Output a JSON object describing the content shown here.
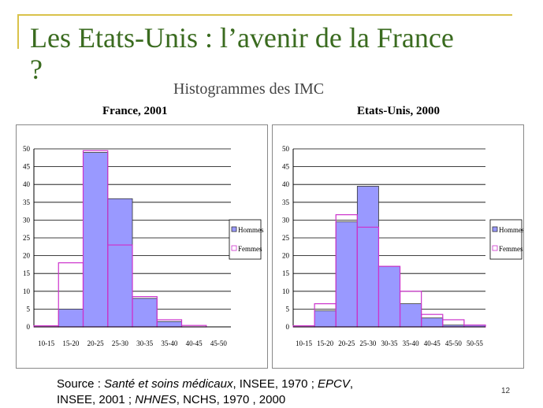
{
  "slide": {
    "title": "Les Etats-Unis : l’avenir de la France ?",
    "subtitle": "Histogrammes des IMC",
    "footer_line1_parts": [
      "Source : ",
      "Santé et soins médicaux",
      ", INSEE, 1970 ; ",
      "EPCV",
      ","
    ],
    "footer_line2_parts": [
      "INSEE, 2001 ; ",
      "NHNES",
      ", NCHS, 1970 , 2000"
    ],
    "page_number": "12"
  },
  "colors": {
    "hommes": "#9999ff",
    "femmes": "#cc33cc",
    "accent": "#d9c24a",
    "title": "#3a6b1f"
  },
  "chart_data": [
    {
      "type": "bar",
      "title": "France, 2001",
      "categories": [
        "10-15",
        "15-20",
        "20-25",
        "25-30",
        "30-35",
        "35-40",
        "40-45",
        "45-50"
      ],
      "series": [
        {
          "name": "Hommes",
          "values": [
            0,
            5,
            49,
            36,
            8,
            1.5,
            0,
            0
          ]
        },
        {
          "name": "Femmes",
          "values": [
            0.3,
            18,
            49.5,
            23,
            8.5,
            2,
            0.4,
            0
          ]
        }
      ],
      "ylim": [
        0,
        50
      ],
      "yticks": [
        0,
        5,
        10,
        15,
        20,
        25,
        30,
        35,
        40,
        45,
        50
      ],
      "legend": "right",
      "grid": true
    },
    {
      "type": "bar",
      "title": "Etats-Unis, 2000",
      "categories": [
        "10-15",
        "15-20",
        "20-25",
        "25-30",
        "30-35",
        "35-40",
        "40-45",
        "45-50",
        "50-55"
      ],
      "series": [
        {
          "name": "Hommes",
          "values": [
            0,
            4.5,
            29.5,
            39.5,
            17,
            6.5,
            2.5,
            0.5,
            0.5
          ]
        },
        {
          "name": "Femmes",
          "values": [
            0.3,
            6.5,
            31.5,
            28,
            17,
            10,
            3.5,
            2,
            0.5
          ]
        }
      ],
      "ylim": [
        0,
        50
      ],
      "yticks": [
        0,
        5,
        10,
        15,
        20,
        25,
        30,
        35,
        40,
        45,
        50
      ],
      "legend": "right",
      "grid": true
    }
  ]
}
